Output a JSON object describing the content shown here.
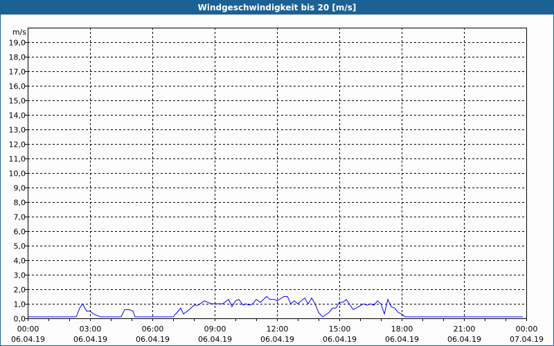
{
  "window": {
    "title": "Windgeschwindigkeit bis 20 [m/s]"
  },
  "chart_data": {
    "type": "line",
    "title": "Windgeschwindigkeit bis 20 [m/s]",
    "ylabel": "m/s",
    "ylim": [
      0,
      20
    ],
    "yticks": [
      "0,0",
      "1,0",
      "2,0",
      "3,0",
      "4,0",
      "5,0",
      "6,0",
      "7,0",
      "8,0",
      "9,0",
      "10,0",
      "11,0",
      "12,0",
      "13,0",
      "14,0",
      "15,0",
      "16,0",
      "17,0",
      "18,0",
      "19,0"
    ],
    "xlim": [
      "06.04.19 00:00",
      "07.04.19 00:00"
    ],
    "xticks": [
      {
        "time": "00:00",
        "date": "06.04.19"
      },
      {
        "time": "03:00",
        "date": "06.04.19"
      },
      {
        "time": "06:00",
        "date": "06.04.19"
      },
      {
        "time": "09:00",
        "date": "06.04.19"
      },
      {
        "time": "12:00",
        "date": "06.04.19"
      },
      {
        "time": "15:00",
        "date": "06.04.19"
      },
      {
        "time": "18:00",
        "date": "06.04.19"
      },
      {
        "time": "21:00",
        "date": "06.04.19"
      },
      {
        "time": "00:00",
        "date": "07.04.19"
      }
    ],
    "grid": true,
    "line_color": "#0000ff",
    "series": [
      {
        "x": [
          "00:00",
          "02:20",
          "02:30",
          "02:38",
          "02:50",
          "03:00",
          "03:10",
          "03:30",
          "04:30",
          "04:40",
          "04:53",
          "05:04",
          "05:10",
          "07:00",
          "07:22",
          "07:30",
          "07:47",
          "08:00",
          "08:12",
          "08:30",
          "08:50",
          "09:23",
          "09:40",
          "09:50",
          "10:00",
          "10:10",
          "10:22",
          "10:30",
          "10:41",
          "10:50",
          "11:00",
          "11:12",
          "11:30",
          "11:40",
          "11:53",
          "12:00",
          "12:20",
          "12:30",
          "12:40",
          "12:50",
          "13:00",
          "13:20",
          "13:30",
          "13:40",
          "13:50",
          "14:00",
          "14:12",
          "14:30",
          "14:40",
          "14:50",
          "15:00",
          "15:10",
          "15:20",
          "15:40",
          "15:56",
          "16:10",
          "16:20",
          "16:30",
          "16:40",
          "16:50",
          "17:00",
          "17:10",
          "17:20",
          "17:30",
          "17:40",
          "17:50",
          "18:00",
          "18:10",
          "23:50"
        ],
        "y": [
          0.1,
          0.1,
          0.7,
          1.0,
          0.5,
          0.5,
          0.3,
          0.1,
          0.1,
          0.6,
          0.6,
          0.5,
          0.1,
          0.1,
          0.7,
          0.3,
          0.6,
          0.9,
          0.9,
          1.2,
          1.0,
          1.0,
          1.3,
          0.8,
          1.2,
          1.3,
          0.9,
          1.0,
          0.9,
          1.0,
          1.3,
          1.1,
          1.5,
          1.3,
          1.3,
          1.2,
          1.5,
          1.5,
          1.0,
          1.2,
          1.0,
          1.4,
          1.0,
          1.4,
          1.0,
          0.4,
          0.1,
          0.4,
          0.7,
          0.7,
          1.1,
          1.1,
          1.3,
          0.6,
          0.8,
          1.0,
          0.9,
          1.0,
          0.9,
          1.2,
          1.0,
          0.3,
          1.3,
          0.8,
          0.7,
          0.4,
          0.3,
          0.1,
          0.1
        ]
      }
    ]
  }
}
